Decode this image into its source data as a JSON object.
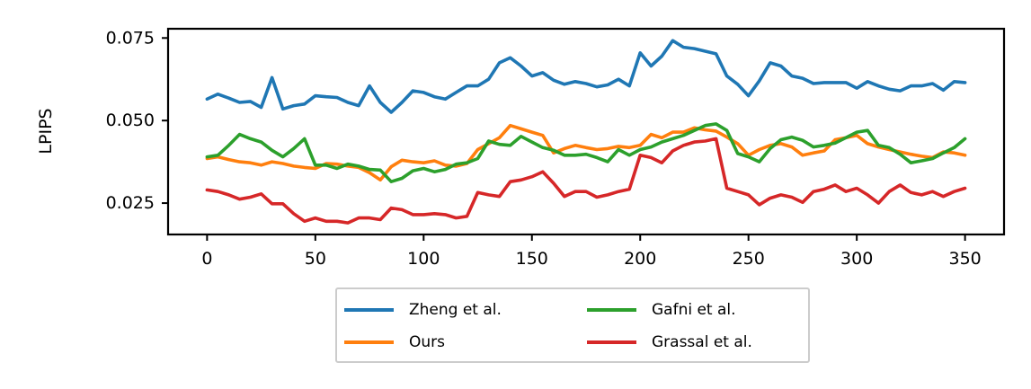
{
  "chart_data": {
    "type": "line",
    "title": "",
    "xlabel": "",
    "ylabel": "LPIPS",
    "xlim": [
      -18,
      368
    ],
    "ylim": [
      0.0155,
      0.0778
    ],
    "x_ticks": [
      0,
      50,
      100,
      150,
      200,
      250,
      300,
      350
    ],
    "x_tick_labels": [
      "0",
      "50",
      "100",
      "150",
      "200",
      "250",
      "300",
      "350"
    ],
    "y_ticks": [
      0.025,
      0.05,
      0.075
    ],
    "y_tick_labels": [
      "0.025",
      "0.050",
      "0.075"
    ],
    "grid": false,
    "legend": {
      "placement": "below",
      "columns": 2
    },
    "x_start": 0,
    "x_step": 5,
    "series": [
      {
        "name": "Zheng et al.",
        "color": "#1f77b4",
        "values": [
          0.0565,
          0.058,
          0.0568,
          0.0555,
          0.0558,
          0.054,
          0.063,
          0.0535,
          0.0545,
          0.055,
          0.0575,
          0.0572,
          0.057,
          0.0555,
          0.0545,
          0.0605,
          0.0555,
          0.0525,
          0.0555,
          0.059,
          0.0585,
          0.0572,
          0.0565,
          0.0585,
          0.0605,
          0.0605,
          0.0625,
          0.0675,
          0.069,
          0.0665,
          0.0635,
          0.0645,
          0.0622,
          0.061,
          0.0618,
          0.0612,
          0.0602,
          0.0608,
          0.0625,
          0.0605,
          0.0705,
          0.0665,
          0.0695,
          0.0742,
          0.0722,
          0.0718,
          0.071,
          0.0702,
          0.0635,
          0.061,
          0.0575,
          0.062,
          0.0675,
          0.0665,
          0.0635,
          0.0628,
          0.0612,
          0.0615,
          0.0615,
          0.0615,
          0.0598,
          0.0618,
          0.0605,
          0.0595,
          0.059,
          0.0605,
          0.0605,
          0.0612,
          0.0592,
          0.0618,
          0.0615
        ]
      },
      {
        "name": "Ours",
        "color": "#ff7f0e",
        "values": [
          0.0385,
          0.039,
          0.0382,
          0.0375,
          0.0372,
          0.0365,
          0.0375,
          0.037,
          0.0362,
          0.0358,
          0.0355,
          0.037,
          0.0368,
          0.0362,
          0.0358,
          0.0342,
          0.032,
          0.036,
          0.038,
          0.0375,
          0.0372,
          0.0378,
          0.0365,
          0.0362,
          0.037,
          0.0412,
          0.043,
          0.0448,
          0.0485,
          0.0475,
          0.0465,
          0.0455,
          0.0402,
          0.0415,
          0.0425,
          0.0418,
          0.0412,
          0.0415,
          0.0422,
          0.0418,
          0.0425,
          0.0458,
          0.0448,
          0.0465,
          0.0465,
          0.0478,
          0.0472,
          0.0468,
          0.045,
          0.043,
          0.0395,
          0.0412,
          0.0425,
          0.043,
          0.042,
          0.0395,
          0.0402,
          0.0408,
          0.0442,
          0.0448,
          0.0455,
          0.043,
          0.042,
          0.0412,
          0.0405,
          0.0398,
          0.0392,
          0.0388,
          0.0405,
          0.0402,
          0.0395
        ]
      },
      {
        "name": "Gafni et al.",
        "color": "#2ca02c",
        "values": [
          0.039,
          0.0395,
          0.0425,
          0.0458,
          0.0445,
          0.0435,
          0.041,
          0.039,
          0.0415,
          0.0445,
          0.0365,
          0.0365,
          0.0355,
          0.0368,
          0.0362,
          0.0352,
          0.035,
          0.0315,
          0.0325,
          0.0348,
          0.0355,
          0.0345,
          0.0352,
          0.0368,
          0.0372,
          0.0385,
          0.0438,
          0.0428,
          0.0425,
          0.0452,
          0.0435,
          0.0418,
          0.041,
          0.0395,
          0.0395,
          0.0398,
          0.0388,
          0.0375,
          0.0412,
          0.0395,
          0.0412,
          0.042,
          0.0435,
          0.0445,
          0.0455,
          0.047,
          0.0485,
          0.049,
          0.047,
          0.04,
          0.039,
          0.0375,
          0.0415,
          0.0442,
          0.045,
          0.044,
          0.042,
          0.0425,
          0.0432,
          0.0448,
          0.0465,
          0.047,
          0.0425,
          0.0418,
          0.0398,
          0.0372,
          0.0378,
          0.0385,
          0.0402,
          0.0418,
          0.0445
        ]
      },
      {
        "name": "Grassal et al.",
        "color": "#d62728",
        "values": [
          0.029,
          0.0285,
          0.0275,
          0.0262,
          0.0268,
          0.0278,
          0.0248,
          0.0248,
          0.0218,
          0.0195,
          0.0205,
          0.0195,
          0.0195,
          0.019,
          0.0205,
          0.0205,
          0.02,
          0.0235,
          0.023,
          0.0215,
          0.0215,
          0.0218,
          0.0215,
          0.0205,
          0.021,
          0.0282,
          0.0275,
          0.027,
          0.0315,
          0.032,
          0.033,
          0.0345,
          0.031,
          0.027,
          0.0285,
          0.0285,
          0.0268,
          0.0275,
          0.0285,
          0.0292,
          0.0395,
          0.0388,
          0.0372,
          0.0408,
          0.0425,
          0.0435,
          0.0438,
          0.0445,
          0.0295,
          0.0285,
          0.0275,
          0.0245,
          0.0265,
          0.0275,
          0.0268,
          0.0252,
          0.0285,
          0.0292,
          0.0305,
          0.0285,
          0.0295,
          0.0275,
          0.025,
          0.0285,
          0.0305,
          0.0282,
          0.0275,
          0.0285,
          0.027,
          0.0285,
          0.0295
        ]
      }
    ]
  }
}
